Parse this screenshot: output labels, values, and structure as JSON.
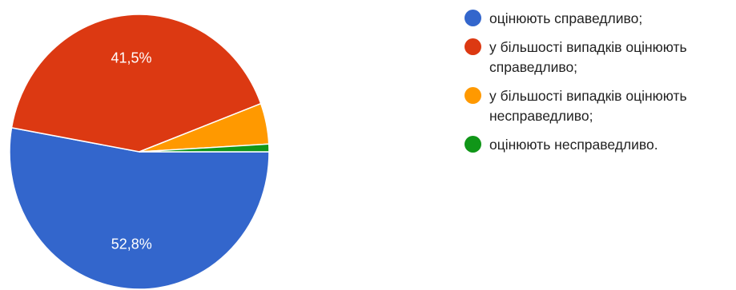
{
  "chart_data": {
    "type": "pie",
    "categories": [
      "оцінюють справедливо;",
      "у більшості випадків оцінюють справедливо;",
      "у більшості випадків оцінюють несправедливо;",
      "оцінюють несправедливо."
    ],
    "values": [
      52.8,
      41.5,
      4.8,
      0.9
    ],
    "data_labels": [
      "52,8%",
      "41,5%",
      "",
      ""
    ],
    "colors": [
      "#3366cc",
      "#dc3912",
      "#ff9900",
      "#109618"
    ],
    "legend_position": "right",
    "title": ""
  }
}
